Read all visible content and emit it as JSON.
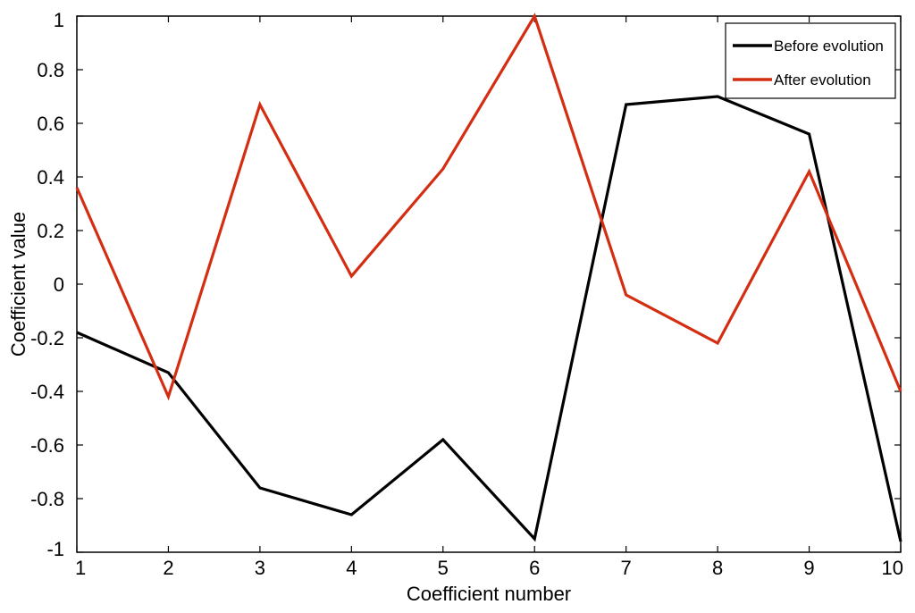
{
  "chart_data": {
    "type": "line",
    "title": "",
    "xlabel": "Coefficient number",
    "ylabel": "Coefficient  value",
    "x": [
      1,
      2,
      3,
      4,
      5,
      6,
      7,
      8,
      9,
      10
    ],
    "xlim": [
      1,
      10
    ],
    "ylim": [
      -1,
      1
    ],
    "xticks": [
      "1",
      "2",
      "3",
      "4",
      "5",
      "6",
      "7",
      "8",
      "9",
      "10"
    ],
    "yticks": [
      "-1",
      "-0.8",
      "-0.6",
      "-0.4",
      "-0.2",
      "0",
      "0.2",
      "0.4",
      "0.6",
      "0.8",
      "1"
    ],
    "ytick_values": [
      -1,
      -0.8,
      -0.6,
      -0.4,
      -0.2,
      0,
      0.2,
      0.4,
      0.6,
      0.8,
      1
    ],
    "grid": false,
    "legend_position": "top-right",
    "series": [
      {
        "name": "Before evolution",
        "color": "#000000",
        "values": [
          -0.18,
          -0.33,
          -0.76,
          -0.86,
          -0.58,
          -0.95,
          0.67,
          0.7,
          0.56,
          -0.96
        ]
      },
      {
        "name": "After evolution",
        "color": "#d42e12",
        "values": [
          0.36,
          -0.42,
          0.67,
          0.03,
          0.43,
          1.0,
          -0.04,
          -0.22,
          0.42,
          -0.4
        ]
      }
    ]
  }
}
